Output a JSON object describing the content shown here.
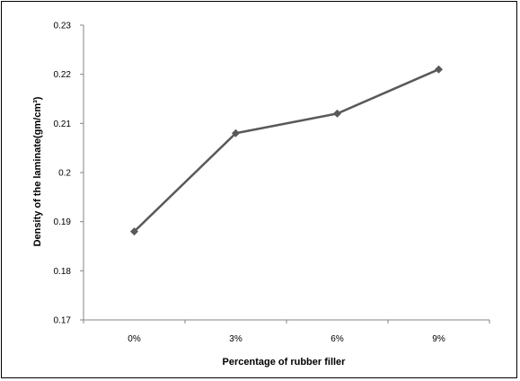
{
  "chart_data": {
    "type": "line",
    "categories": [
      "0%",
      "3%",
      "6%",
      "9%"
    ],
    "series": [
      {
        "values": [
          0.188,
          0.208,
          0.212,
          0.221
        ],
        "color": "#595959",
        "marker": "diamond"
      }
    ],
    "title": "",
    "xlabel": "Percentage of rubber filler",
    "ylabel": "Density of the laminate(gm/cm³)",
    "ylim": [
      0.17,
      0.23
    ],
    "yticks": [
      "0.17",
      "0.18",
      "0.19",
      "0.2",
      "0.21",
      "0.22",
      "0.23"
    ],
    "grid": false,
    "legend": "none"
  }
}
